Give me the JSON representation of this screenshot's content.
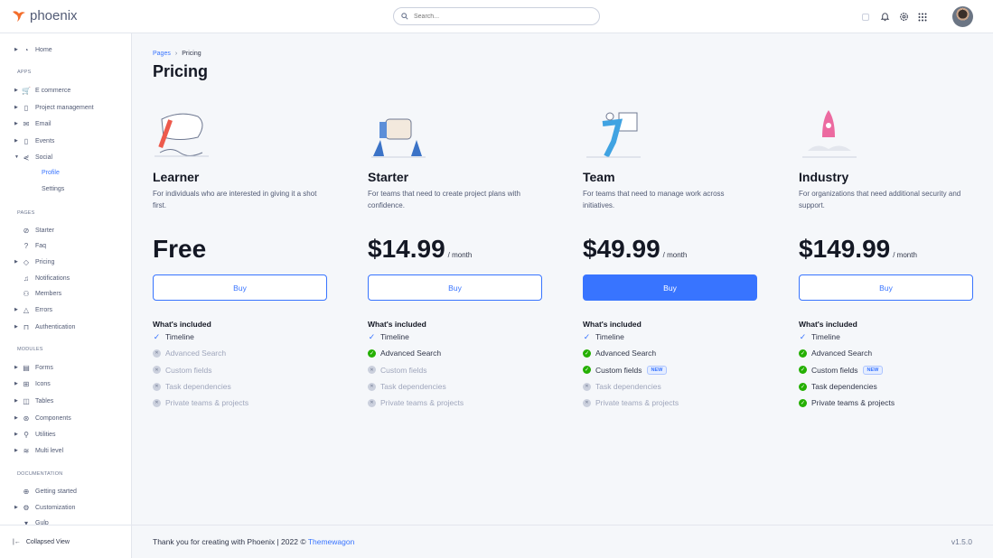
{
  "app": {
    "name": "phoenix",
    "brand_color": "#f36d2b",
    "accent": "#3874ff"
  },
  "search": {
    "placeholder": "Search..."
  },
  "topbar_icons": [
    "theme-toggle-icon",
    "bell-icon",
    "gear-icon",
    "apps-grid-icon"
  ],
  "sidebar": {
    "entries": [
      {
        "type": "item",
        "label": "Home",
        "icon": "pie-chart-icon",
        "caret": true
      },
      {
        "type": "section",
        "label": "APPS"
      },
      {
        "type": "item",
        "label": "E commerce",
        "icon": "cart-icon",
        "caret": true
      },
      {
        "type": "item",
        "label": "Project management",
        "icon": "clipboard-icon",
        "caret": true
      },
      {
        "type": "item",
        "label": "Email",
        "icon": "mail-icon",
        "caret": true
      },
      {
        "type": "item",
        "label": "Events",
        "icon": "clipboard-icon",
        "caret": true
      },
      {
        "type": "item",
        "label": "Social",
        "icon": "share-icon",
        "caret": true,
        "open": true
      },
      {
        "type": "sub",
        "label": "Profile",
        "active": true
      },
      {
        "type": "sub",
        "label": "Settings"
      },
      {
        "type": "section",
        "label": "PAGES"
      },
      {
        "type": "item",
        "label": "Starter",
        "icon": "compass-icon"
      },
      {
        "type": "item",
        "label": "Faq",
        "icon": "help-icon"
      },
      {
        "type": "item",
        "label": "Pricing",
        "icon": "tag-icon",
        "caret": true
      },
      {
        "type": "item",
        "label": "Notifications",
        "icon": "bell-icon"
      },
      {
        "type": "item",
        "label": "Members",
        "icon": "users-icon"
      },
      {
        "type": "item",
        "label": "Errors",
        "icon": "warning-icon",
        "caret": true
      },
      {
        "type": "item",
        "label": "Authentication",
        "icon": "lock-icon",
        "caret": true
      },
      {
        "type": "section",
        "label": "MODULES"
      },
      {
        "type": "item",
        "label": "Forms",
        "icon": "file-icon",
        "caret": true
      },
      {
        "type": "item",
        "label": "Icons",
        "icon": "grid-icon",
        "caret": true
      },
      {
        "type": "item",
        "label": "Tables",
        "icon": "columns-icon",
        "caret": true
      },
      {
        "type": "item",
        "label": "Components",
        "icon": "package-icon",
        "caret": true
      },
      {
        "type": "item",
        "label": "Utilities",
        "icon": "tool-icon",
        "caret": true
      },
      {
        "type": "item",
        "label": "Multi level",
        "icon": "layers-icon",
        "caret": true
      },
      {
        "type": "section",
        "label": "DOCUMENTATION"
      },
      {
        "type": "item",
        "label": "Getting started",
        "icon": "life-buoy-icon"
      },
      {
        "type": "item",
        "label": "Customization",
        "icon": "settings-icon",
        "caret": true
      },
      {
        "type": "item",
        "label": "Gulp",
        "icon": "gulp-icon"
      }
    ],
    "footer": "Collapsed View"
  },
  "breadcrumb": {
    "parent": "Pages",
    "current": "Pricing"
  },
  "page_title": "Pricing",
  "included_label": "What's included",
  "plans": [
    {
      "name": "Learner",
      "desc": "For individuals who are interested in giving it a shot first.",
      "price": "Free",
      "per": "",
      "button": "Buy",
      "primary": false,
      "features": [
        {
          "label": "Timeline",
          "state": "timeline"
        },
        {
          "label": "Advanced Search",
          "state": "no"
        },
        {
          "label": "Custom fields",
          "state": "no"
        },
        {
          "label": "Task dependencies",
          "state": "no"
        },
        {
          "label": "Private teams & projects",
          "state": "no"
        }
      ]
    },
    {
      "name": "Starter",
      "desc": "For teams that need to create project plans with confidence.",
      "price": "$14.99",
      "per": "/ month",
      "button": "Buy",
      "primary": false,
      "features": [
        {
          "label": "Timeline",
          "state": "timeline"
        },
        {
          "label": "Advanced Search",
          "state": "ok"
        },
        {
          "label": "Custom fields",
          "state": "no"
        },
        {
          "label": "Task dependencies",
          "state": "no"
        },
        {
          "label": "Private teams & projects",
          "state": "no"
        }
      ]
    },
    {
      "name": "Team",
      "desc": "For teams that need to manage work across initiatives.",
      "price": "$49.99",
      "per": "/ month",
      "button": "Buy",
      "primary": true,
      "features": [
        {
          "label": "Timeline",
          "state": "timeline"
        },
        {
          "label": "Advanced Search",
          "state": "ok"
        },
        {
          "label": "Custom fields",
          "state": "ok",
          "badge": "NEW"
        },
        {
          "label": "Task dependencies",
          "state": "no"
        },
        {
          "label": "Private teams & projects",
          "state": "no"
        }
      ]
    },
    {
      "name": "Industry",
      "desc": "For organizations that need additional security and support.",
      "price": "$149.99",
      "per": "/ month",
      "button": "Buy",
      "primary": false,
      "features": [
        {
          "label": "Timeline",
          "state": "timeline"
        },
        {
          "label": "Advanced Search",
          "state": "ok"
        },
        {
          "label": "Custom fields",
          "state": "ok",
          "badge": "NEW"
        },
        {
          "label": "Task dependencies",
          "state": "ok"
        },
        {
          "label": "Private teams & projects",
          "state": "ok"
        }
      ]
    }
  ],
  "footer": {
    "text": "Thank you for creating with Phoenix | 2022 © ",
    "link": "Themewagon",
    "version": "v1.5.0"
  }
}
